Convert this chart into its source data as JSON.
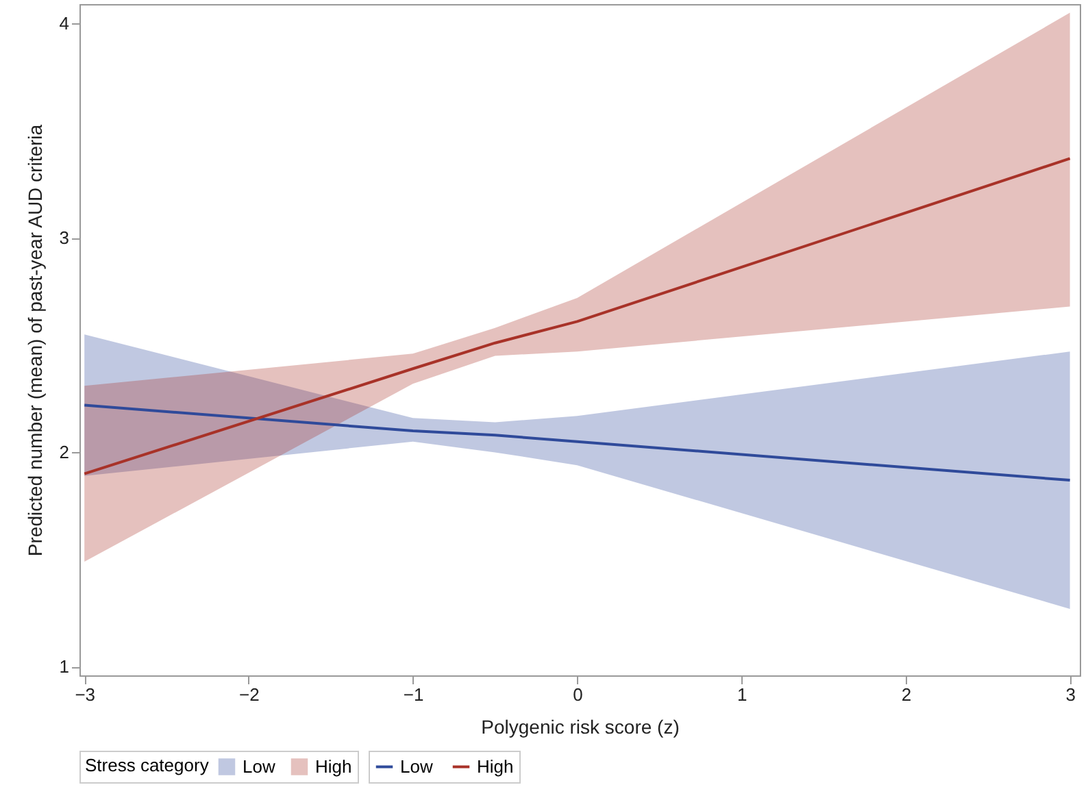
{
  "chart_data": {
    "type": "line",
    "xlabel": "Polygenic risk score (z)",
    "ylabel": "Predicted number (mean) of past-year AUD criteria",
    "legend_title": "Stress category",
    "legend": "bottom",
    "grid": false,
    "x": [
      -3,
      -1,
      -0.5,
      0,
      3
    ],
    "xlim": [
      -3.03,
      3.06
    ],
    "xticks": [
      -3,
      -2,
      -1,
      0,
      1,
      2,
      3
    ],
    "ylim": [
      0.96,
      4.09
    ],
    "yticks": [
      1,
      2,
      3,
      4
    ],
    "series": [
      {
        "name": "Low",
        "color": "#2f4a9a",
        "values": [
          2.22,
          2.1,
          2.08,
          2.05,
          1.87
        ],
        "lower": [
          1.89,
          2.05,
          2.0,
          1.94,
          1.27
        ],
        "upper": [
          2.55,
          2.16,
          2.14,
          2.17,
          2.47
        ]
      },
      {
        "name": "High",
        "color": "#a83228",
        "values": [
          1.9,
          2.39,
          2.51,
          2.61,
          3.37
        ],
        "lower": [
          1.49,
          2.32,
          2.45,
          2.47,
          2.68
        ],
        "upper": [
          2.31,
          2.46,
          2.58,
          2.72,
          4.05
        ]
      }
    ]
  }
}
